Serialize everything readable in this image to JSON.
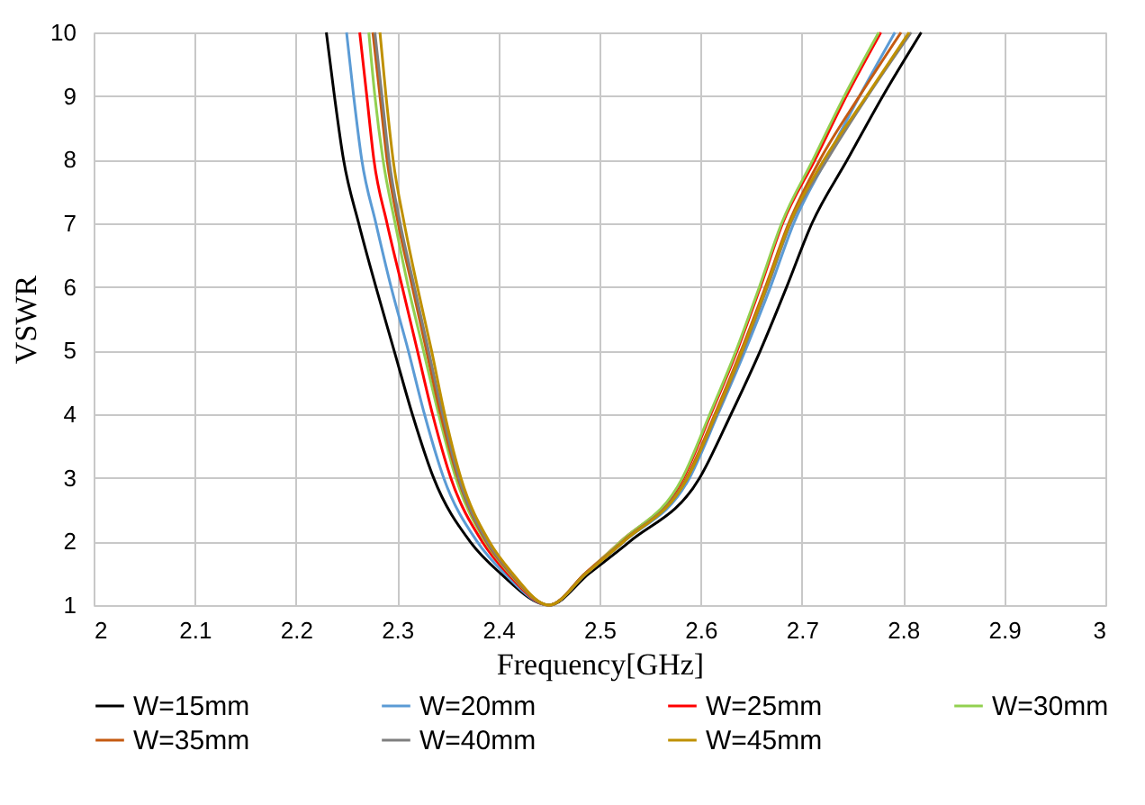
{
  "chart_data": {
    "type": "line",
    "xlabel": "Frequency[GHz]",
    "ylabel": "VSWR",
    "xlim": [
      2,
      3
    ],
    "xticks": [
      2,
      2.1,
      2.2,
      2.3,
      2.4,
      2.5,
      2.6,
      2.7,
      2.8,
      2.9,
      3
    ],
    "ylim": [
      1,
      10
    ],
    "yticks": [
      1,
      2,
      3,
      4,
      5,
      6,
      7,
      8,
      9,
      10
    ],
    "grid": true,
    "legend": "bottom",
    "marker": "none",
    "line_style": "solid",
    "series": [
      {
        "name": "W=15mm",
        "color": "#000000",
        "x": [
          2.23,
          2.238,
          2.247,
          2.262,
          2.279,
          2.297,
          2.315,
          2.336,
          2.372,
          2.402,
          2.45,
          2.49,
          2.53,
          2.599,
          2.63,
          2.659,
          2.685,
          2.71,
          2.745,
          2.78,
          2.818
        ],
        "values": [
          10,
          9,
          8,
          7,
          6,
          5,
          4,
          3,
          2,
          1.5,
          1,
          1.5,
          2,
          3,
          4,
          5,
          6,
          7,
          8,
          9,
          10
        ]
      },
      {
        "name": "W=20mm",
        "color": "#5b9bd5",
        "x": [
          2.25,
          2.257,
          2.265,
          2.279,
          2.294,
          2.311,
          2.327,
          2.346,
          2.379,
          2.406,
          2.45,
          2.487,
          2.524,
          2.589,
          2.617,
          2.644,
          2.669,
          2.692,
          2.724,
          2.757,
          2.792
        ],
        "values": [
          10,
          9,
          8,
          7,
          6,
          5,
          4,
          3,
          2,
          1.5,
          1,
          1.5,
          2,
          3,
          4,
          5,
          6,
          7,
          8,
          9,
          10
        ]
      },
      {
        "name": "W=25mm",
        "color": "#ff0000",
        "x": [
          2.263,
          2.27,
          2.277,
          2.29,
          2.305,
          2.32,
          2.335,
          2.353,
          2.384,
          2.409,
          2.45,
          2.486,
          2.521,
          2.583,
          2.61,
          2.636,
          2.659,
          2.681,
          2.713,
          2.744,
          2.778
        ],
        "values": [
          10,
          9,
          8,
          7,
          6,
          5,
          4,
          3,
          2,
          1.5,
          1,
          1.5,
          2,
          3,
          4,
          5,
          6,
          7,
          8,
          9,
          10
        ]
      },
      {
        "name": "W=30mm",
        "color": "#92d050",
        "x": [
          2.272,
          2.278,
          2.286,
          2.298,
          2.311,
          2.326,
          2.341,
          2.358,
          2.387,
          2.411,
          2.45,
          2.486,
          2.521,
          2.582,
          2.609,
          2.635,
          2.658,
          2.68,
          2.711,
          2.742,
          2.776
        ],
        "values": [
          10,
          9,
          8,
          7,
          6,
          5,
          4,
          3,
          2,
          1.5,
          1,
          1.5,
          2,
          3,
          4,
          5,
          6,
          7,
          8,
          9,
          10
        ]
      },
      {
        "name": "W=35mm",
        "color": "#c55a11",
        "x": [
          2.276,
          2.283,
          2.29,
          2.301,
          2.315,
          2.329,
          2.343,
          2.36,
          2.388,
          2.412,
          2.45,
          2.486,
          2.523,
          2.586,
          2.614,
          2.64,
          2.664,
          2.687,
          2.718,
          2.757,
          2.798
        ],
        "values": [
          10,
          9,
          8,
          7,
          6,
          5,
          4,
          3,
          2,
          1.5,
          1,
          1.5,
          2,
          3,
          4,
          5,
          6,
          7,
          8,
          9,
          10
        ]
      },
      {
        "name": "W=40mm",
        "color": "#7f7f7f",
        "x": [
          2.278,
          2.285,
          2.292,
          2.303,
          2.317,
          2.331,
          2.345,
          2.361,
          2.389,
          2.413,
          2.45,
          2.487,
          2.524,
          2.587,
          2.616,
          2.642,
          2.666,
          2.689,
          2.725,
          2.765,
          2.808
        ],
        "values": [
          10,
          9,
          8,
          7,
          6,
          5,
          4,
          3,
          2,
          1.5,
          1,
          1.5,
          2,
          3,
          4,
          5,
          6,
          7,
          8,
          9,
          10
        ]
      },
      {
        "name": "W=45mm",
        "color": "#bf9000",
        "x": [
          2.283,
          2.289,
          2.296,
          2.307,
          2.32,
          2.334,
          2.347,
          2.363,
          2.391,
          2.414,
          2.45,
          2.487,
          2.524,
          2.587,
          2.615,
          2.641,
          2.665,
          2.688,
          2.722,
          2.764,
          2.806
        ],
        "values": [
          10,
          9,
          8,
          7,
          6,
          5,
          4,
          3,
          2,
          1.5,
          1,
          1.5,
          2,
          3,
          4,
          5,
          6,
          7,
          8,
          9,
          10
        ]
      }
    ]
  }
}
